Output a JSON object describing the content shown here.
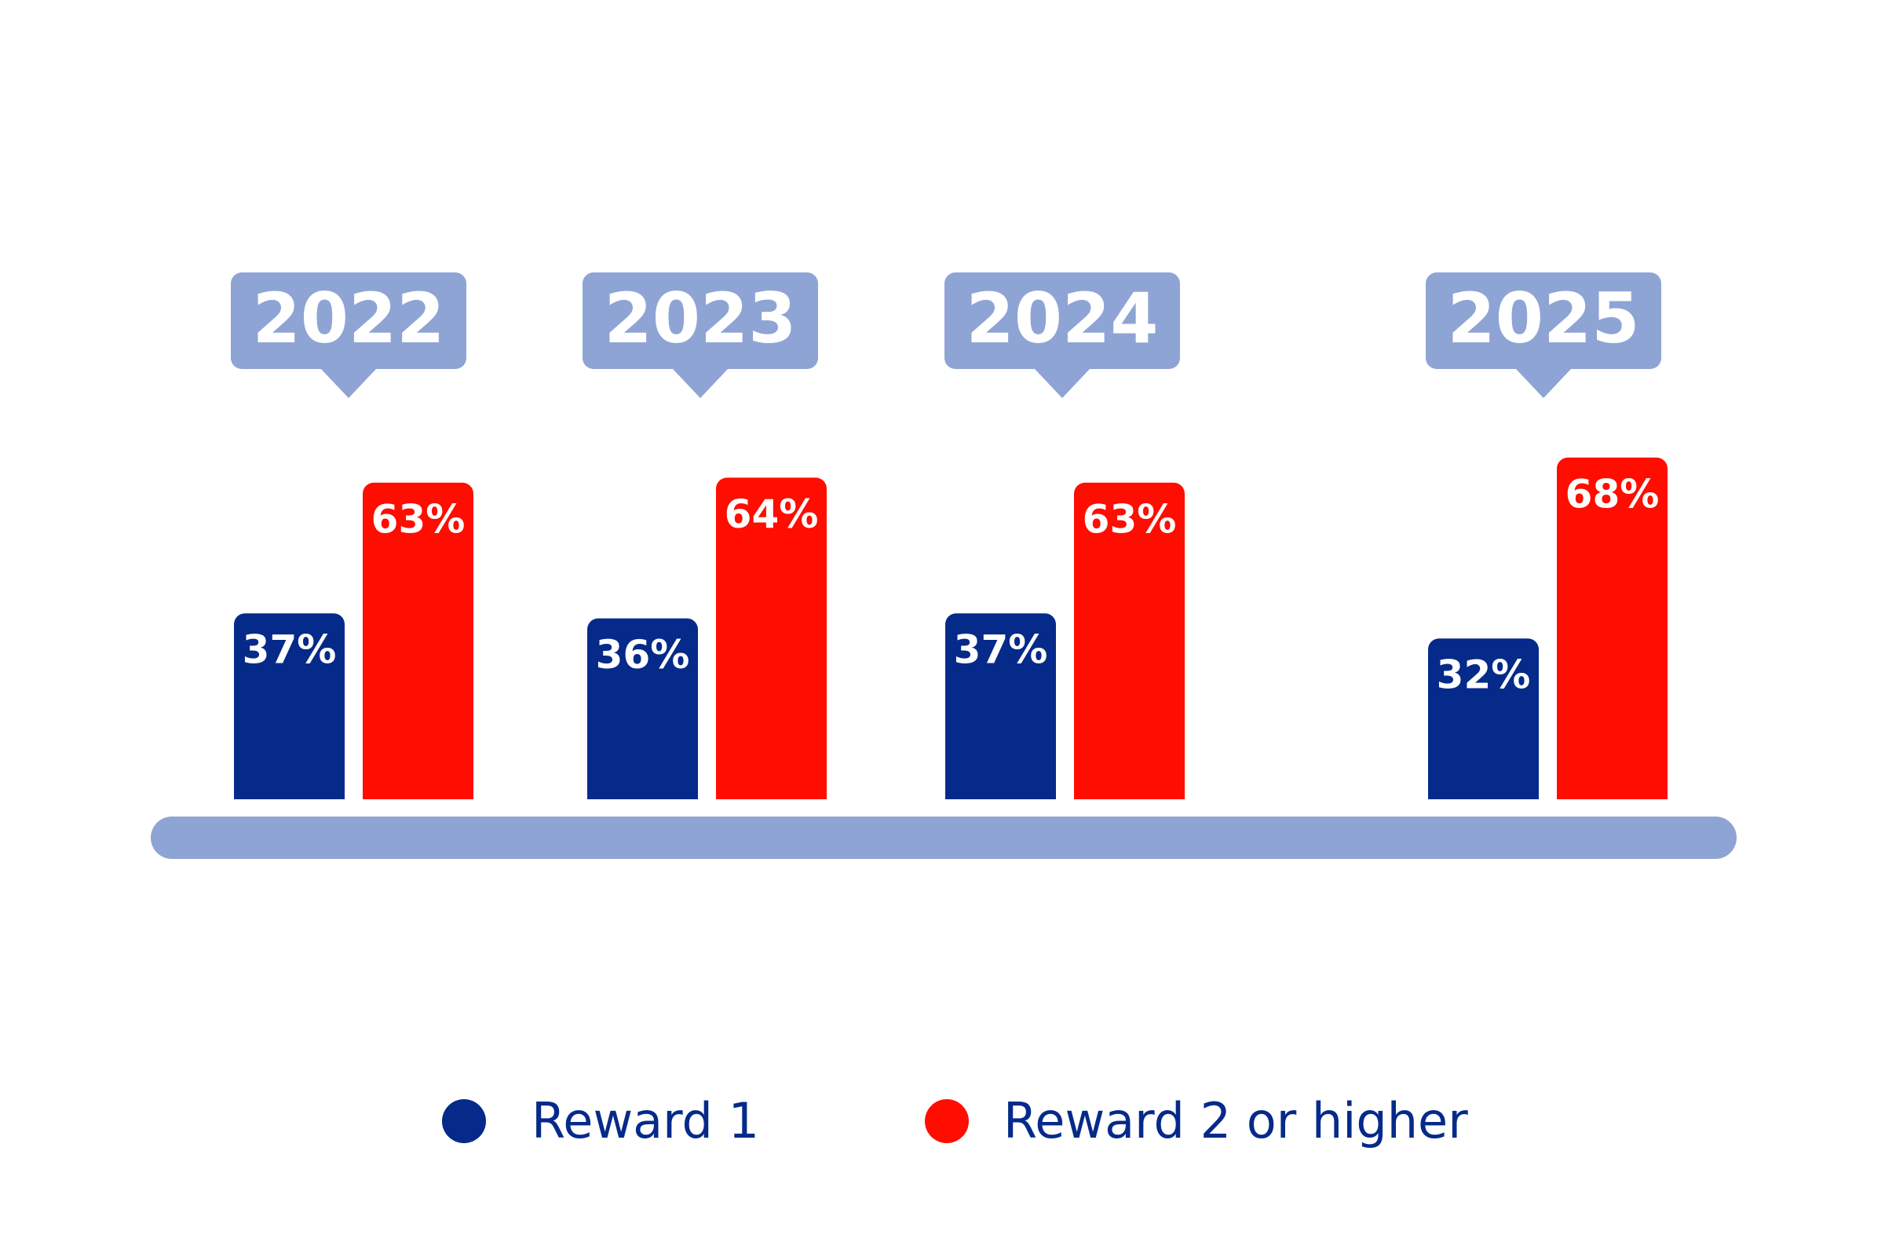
{
  "chart_data": {
    "type": "bar",
    "categories": [
      "2022",
      "2023",
      "2024",
      "2025"
    ],
    "series": [
      {
        "name": "Reward 1",
        "color": "#052a8a",
        "values": [
          37,
          36,
          37,
          32
        ],
        "value_labels": [
          "37%",
          "36%",
          "37%",
          "32%"
        ]
      },
      {
        "name": "Reward 2 or higher",
        "color": "#ff0d00",
        "values": [
          63,
          64,
          63,
          68
        ],
        "value_labels": [
          "63%",
          "64%",
          "63%",
          "68%"
        ]
      }
    ],
    "tag_color": "#8ea4d4"
  }
}
